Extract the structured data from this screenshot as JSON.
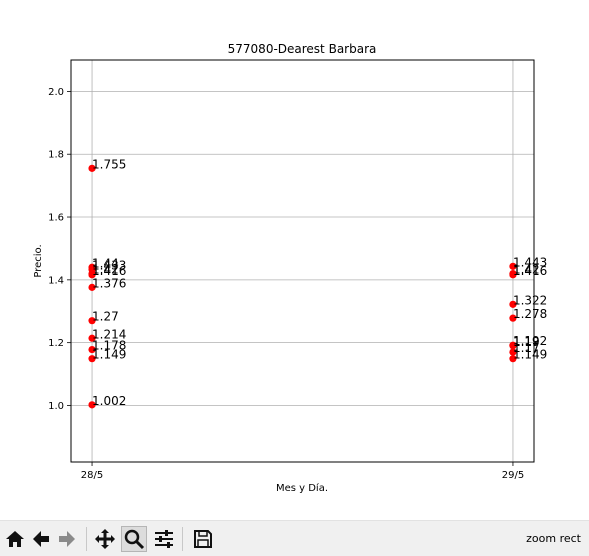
{
  "chart_data": {
    "type": "scatter",
    "title": "577080-Dearest Barbara",
    "xlabel": "Mes y Día.",
    "ylabel": "Precio.",
    "categories": [
      "28/5",
      "29/5"
    ],
    "ylim": [
      0.82,
      2.1
    ],
    "yticks": [
      1.0,
      1.2,
      1.4,
      1.6,
      1.8,
      2.0
    ],
    "ytick_labels": [
      "1.0",
      "1.2",
      "1.4",
      "1.6",
      "1.8",
      "2.0"
    ],
    "grid": true,
    "marker_color": "#ff0000",
    "points": [
      {
        "category": "28/5",
        "y": 1.755,
        "label": "1.755"
      },
      {
        "category": "28/5",
        "y": 1.44,
        "label": "1.44"
      },
      {
        "category": "28/5",
        "y": 1.433,
        "label": "1.433"
      },
      {
        "category": "28/5",
        "y": 1.42,
        "label": "1.42"
      },
      {
        "category": "28/5",
        "y": 1.416,
        "label": "1.416"
      },
      {
        "category": "28/5",
        "y": 1.376,
        "label": "1.376"
      },
      {
        "category": "28/5",
        "y": 1.27,
        "label": "1.27"
      },
      {
        "category": "28/5",
        "y": 1.214,
        "label": "1.214"
      },
      {
        "category": "28/5",
        "y": 1.178,
        "label": "1.178"
      },
      {
        "category": "28/5",
        "y": 1.149,
        "label": "1.149"
      },
      {
        "category": "28/5",
        "y": 1.002,
        "label": "1.002"
      },
      {
        "category": "29/5",
        "y": 1.443,
        "label": "1.443"
      },
      {
        "category": "29/5",
        "y": 1.42,
        "label": "1.42"
      },
      {
        "category": "29/5",
        "y": 1.416,
        "label": "1.416"
      },
      {
        "category": "29/5",
        "y": 1.322,
        "label": "1.322"
      },
      {
        "category": "29/5",
        "y": 1.278,
        "label": "1.278"
      },
      {
        "category": "29/5",
        "y": 1.192,
        "label": "1.192"
      },
      {
        "category": "29/5",
        "y": 1.19,
        "label": "1.19"
      },
      {
        "category": "29/5",
        "y": 1.17,
        "label": "1.17"
      },
      {
        "category": "29/5",
        "y": 1.149,
        "label": "1.149"
      }
    ]
  },
  "toolbar": {
    "icons": [
      "home-icon",
      "back-arrow-icon",
      "forward-arrow-icon",
      "pan-icon",
      "zoom-icon",
      "configure-subplots-icon",
      "save-icon"
    ],
    "status": "zoom rect"
  }
}
